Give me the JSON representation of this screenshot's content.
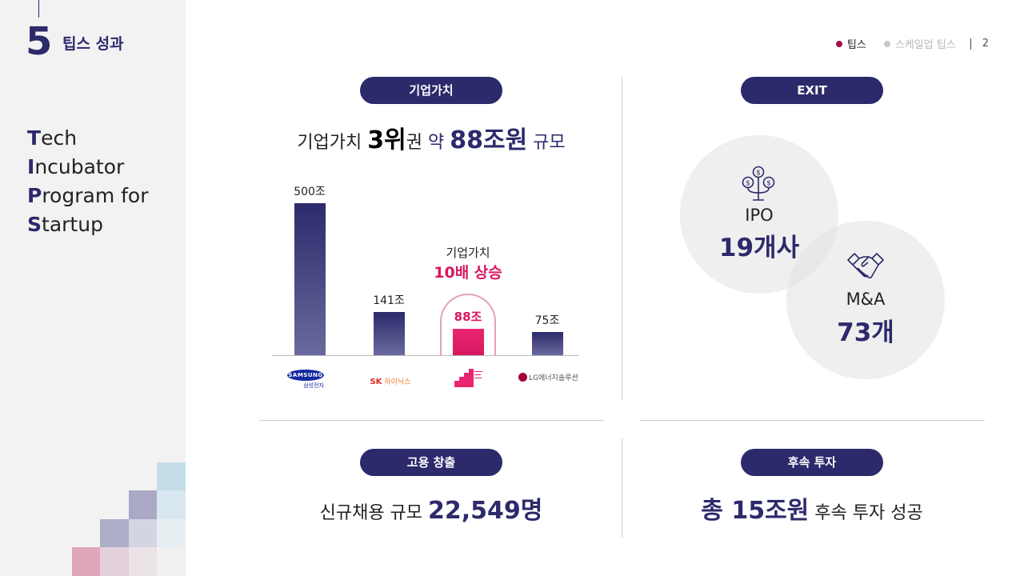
{
  "section": {
    "number": "5",
    "title": "팁스 성과"
  },
  "acronym": [
    {
      "initial": "T",
      "rest": "ech"
    },
    {
      "initial": "I",
      "rest": "ncubator"
    },
    {
      "initial": "P",
      "rest": "rogram for"
    },
    {
      "initial": "S",
      "rest": "tartup"
    }
  ],
  "nav": {
    "active": "팁스",
    "inactive": "스케일업 팁스",
    "page": "2"
  },
  "colors": {
    "navy": "#2c2a6b",
    "pink": "#d8175f",
    "sidebar": "#f2f2f2"
  },
  "valuation": {
    "pill": "기업가치",
    "headline": {
      "pre": "기업가치 ",
      "rank": "3위",
      "mid1": "권 ",
      "about": "약 ",
      "amount": "88조원",
      "post": " 규모"
    },
    "annotation": {
      "line1": "기업가치",
      "line2": "10배 상승"
    }
  },
  "chart_data": {
    "type": "bar",
    "categories": [
      "삼성전자",
      "SK하이닉스",
      "TIPS",
      "LG에너지솔루션"
    ],
    "values": [
      500,
      141,
      88,
      75
    ],
    "value_labels": [
      "500조",
      "141조",
      "88조",
      "75조"
    ],
    "highlight_index": 2,
    "ylim": [
      0,
      500
    ]
  },
  "logos": {
    "samsung_top": "SAMSUNG",
    "samsung_bottom": "삼성전자",
    "sk_letters": "SK",
    "sk_name": "하이닉스",
    "lg": "LG에너지솔루션"
  },
  "exit": {
    "pill": "EXIT",
    "ipo": {
      "label": "IPO",
      "value": "19개사",
      "icon": "money-tree-icon"
    },
    "ma": {
      "label": "M&A",
      "value": "73개",
      "icon": "handshake-icon"
    }
  },
  "employment": {
    "pill": "고용 창출",
    "pre": "신규채용 규모 ",
    "value": "22,549명"
  },
  "investment": {
    "pill": "후속 투자",
    "pre": "총 ",
    "value": "15조원",
    "post": " 후속 투자 성공"
  }
}
